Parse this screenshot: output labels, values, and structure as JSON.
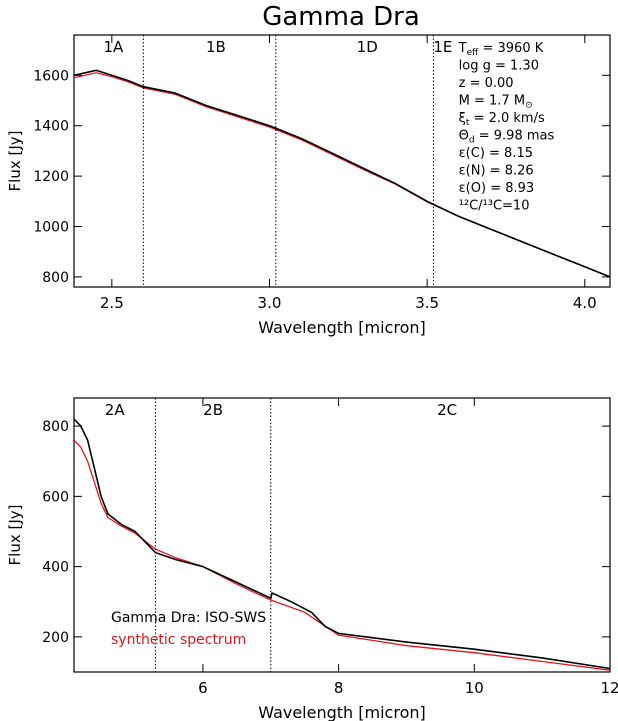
{
  "title": "Gamma Dra",
  "colors": {
    "observed": "#000000",
    "synthetic": "#e8141c",
    "axes": "#000000"
  },
  "chart_data": [
    {
      "type": "line",
      "xlabel": "Wavelength [micron]",
      "ylabel": "Flux [Jy]",
      "xlim": [
        2.38,
        4.08
      ],
      "ylim": [
        760,
        1760
      ],
      "xticks": [
        2.5,
        3.0,
        3.5,
        4.0
      ],
      "xtick_labels": [
        "2.5",
        "3.0",
        "3.5",
        "4.0"
      ],
      "yticks": [
        800,
        1000,
        1200,
        1400,
        1600
      ],
      "ytick_labels": [
        "800",
        "1000",
        "1200",
        "1400",
        "1600"
      ],
      "band_boundaries": [
        2.6,
        3.02,
        3.52
      ],
      "band_labels": [
        {
          "text": "1A",
          "x": 2.505
        },
        {
          "text": "1B",
          "x": 2.83
        },
        {
          "text": "1D",
          "x": 3.31
        },
        {
          "text": "1E",
          "x": 3.55
        }
      ],
      "parameters": [
        {
          "label": "T",
          "sub": "eff",
          "value": " = 3960 K"
        },
        {
          "label": "log g = 1.30"
        },
        {
          "label": "z = 0.00"
        },
        {
          "label": "M = 1.7 M",
          "sub": "⊙"
        },
        {
          "label": "ξ",
          "sub": "t",
          "value": " = 2.0 km/s"
        },
        {
          "label": "Θ",
          "sub": "d",
          "value": " = 9.98 mas"
        },
        {
          "label": "ε(C) = 8.15"
        },
        {
          "label": "ε(N) = 8.26"
        },
        {
          "label": "ε(O) = 8.93"
        },
        {
          "label": "¹²C/¹³C=10"
        }
      ],
      "series": [
        {
          "name": "Gamma Dra: ISO-SWS",
          "x": [
            2.38,
            2.45,
            2.5,
            2.55,
            2.6,
            2.7,
            2.8,
            2.9,
            3.0,
            3.1,
            3.2,
            3.3,
            3.4,
            3.5,
            3.6,
            3.7,
            3.8,
            3.9,
            4.0,
            4.08
          ],
          "y": [
            1600,
            1620,
            1600,
            1580,
            1555,
            1530,
            1480,
            1440,
            1400,
            1350,
            1290,
            1230,
            1170,
            1100,
            1040,
            990,
            940,
            890,
            840,
            800
          ]
        },
        {
          "name": "synthetic spectrum",
          "x": [
            2.38,
            2.45,
            2.5,
            2.55,
            2.6,
            2.7,
            2.8,
            2.9,
            3.0,
            3.1,
            3.2,
            3.3,
            3.4,
            3.5,
            3.6,
            3.7,
            3.8,
            3.9,
            4.0,
            4.08
          ],
          "y": [
            1590,
            1610,
            1595,
            1575,
            1550,
            1525,
            1475,
            1435,
            1395,
            1345,
            1285,
            1225,
            1168,
            1098,
            1040,
            990,
            940,
            890,
            840,
            800
          ]
        }
      ]
    },
    {
      "type": "line",
      "xlabel": "Wavelength [micron]",
      "ylabel": "Flux [Jy]",
      "xlim": [
        4.1,
        12.0
      ],
      "ylim": [
        100,
        880
      ],
      "xticks": [
        6,
        8,
        10,
        12
      ],
      "xtick_labels": [
        "6",
        "8",
        "10",
        "12"
      ],
      "yticks": [
        200,
        400,
        600,
        800
      ],
      "ytick_labels": [
        "200",
        "400",
        "600",
        "800"
      ],
      "band_boundaries": [
        5.3,
        7.0
      ],
      "band_labels": [
        {
          "text": "2A",
          "x": 4.7
        },
        {
          "text": "2B",
          "x": 6.15
        },
        {
          "text": "2C",
          "x": 9.6
        }
      ],
      "legend": {
        "position": "bottom-left",
        "entries": [
          {
            "text": "Gamma Dra: ISO-SWS",
            "series": 0
          },
          {
            "text": "synthetic spectrum",
            "series": 1
          }
        ]
      },
      "series": [
        {
          "name": "Gamma Dra: ISO-SWS",
          "x": [
            4.1,
            4.2,
            4.3,
            4.4,
            4.5,
            4.6,
            4.8,
            5.0,
            5.3,
            5.6,
            6.0,
            6.5,
            7.0,
            7.02,
            7.3,
            7.6,
            7.8,
            8.0,
            9.0,
            10.0,
            11.0,
            12.0
          ],
          "y": [
            820,
            800,
            760,
            680,
            600,
            550,
            520,
            500,
            440,
            420,
            400,
            355,
            310,
            325,
            300,
            270,
            230,
            210,
            185,
            165,
            140,
            110
          ]
        },
        {
          "name": "synthetic spectrum",
          "x": [
            4.1,
            4.2,
            4.3,
            4.4,
            4.5,
            4.6,
            4.8,
            5.0,
            5.3,
            5.6,
            6.0,
            6.5,
            7.0,
            7.5,
            8.0,
            9.0,
            10.0,
            11.0,
            12.0
          ],
          "y": [
            760,
            740,
            700,
            640,
            580,
            540,
            515,
            495,
            450,
            425,
            400,
            350,
            305,
            270,
            205,
            175,
            155,
            130,
            105
          ]
        }
      ]
    }
  ]
}
